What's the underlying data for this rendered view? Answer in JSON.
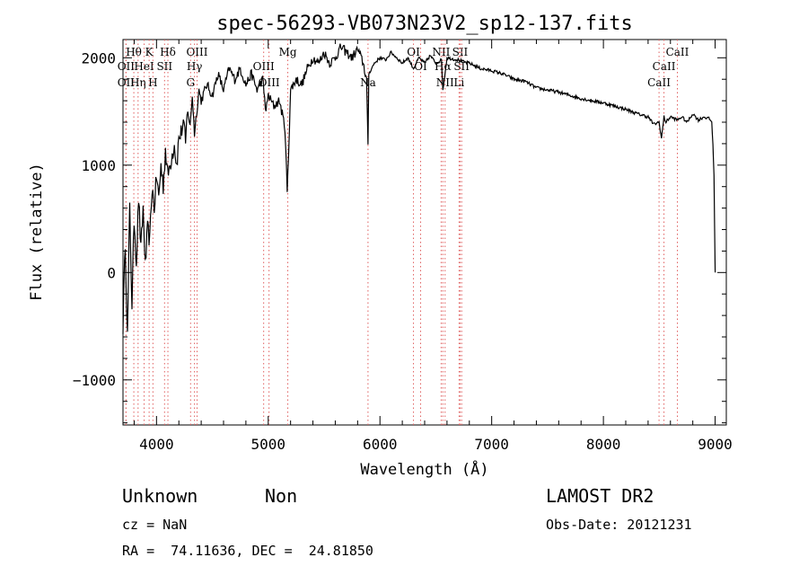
{
  "chart_data": {
    "type": "line",
    "title": "spec-56293-VB073N23V2_sp12-137.fits",
    "xlabel": "Wavelength (Å)",
    "ylabel": "Flux (relative)",
    "xlim": [
      3700,
      9100
    ],
    "ylim": [
      -1420,
      2170
    ],
    "x_ticks": [
      4000,
      5000,
      6000,
      7000,
      8000,
      9000
    ],
    "y_ticks": [
      -1000,
      0,
      1000,
      2000
    ],
    "x_tick_labels": [
      "4000",
      "5000",
      "6000",
      "7000",
      "8000",
      "9000"
    ],
    "y_tick_labels": [
      "−1000",
      "0",
      "1000",
      "2000"
    ],
    "line_color": "#000000",
    "marker_color": "#e06060",
    "spectrum": {
      "x": [
        3700,
        3720,
        3740,
        3760,
        3780,
        3800,
        3820,
        3840,
        3860,
        3880,
        3900,
        3920,
        3940,
        3960,
        3980,
        4000,
        4020,
        4040,
        4060,
        4080,
        4100,
        4120,
        4140,
        4160,
        4180,
        4200,
        4220,
        4240,
        4260,
        4280,
        4300,
        4320,
        4340,
        4360,
        4380,
        4400,
        4450,
        4500,
        4550,
        4600,
        4650,
        4700,
        4750,
        4800,
        4850,
        4900,
        4950,
        4980,
        5000,
        5050,
        5100,
        5150,
        5170,
        5185,
        5200,
        5250,
        5300,
        5350,
        5400,
        5450,
        5500,
        5550,
        5600,
        5650,
        5700,
        5750,
        5800,
        5850,
        5880,
        5893,
        5900,
        5950,
        6000,
        6050,
        6100,
        6150,
        6200,
        6250,
        6300,
        6350,
        6400,
        6450,
        6500,
        6550,
        6563,
        6600,
        6650,
        6700,
        6750,
        6800,
        6900,
        7000,
        7100,
        7200,
        7300,
        7400,
        7500,
        7600,
        7700,
        7800,
        7900,
        8000,
        8100,
        8200,
        8300,
        8400,
        8450,
        8498,
        8520,
        8542,
        8560,
        8600,
        8662,
        8700,
        8750,
        8800,
        8850,
        8900,
        8950,
        8970,
        8980,
        8990,
        9000
      ],
      "y": [
        -500,
        300,
        -600,
        600,
        -300,
        500,
        100,
        700,
        200,
        600,
        50,
        400,
        300,
        800,
        600,
        900,
        700,
        1000,
        800,
        1150,
        900,
        1000,
        1100,
        1200,
        1000,
        1250,
        1300,
        1400,
        1200,
        1550,
        1350,
        1650,
        1300,
        1500,
        1700,
        1600,
        1750,
        1650,
        1850,
        1700,
        1900,
        1800,
        1900,
        1750,
        1850,
        1700,
        1800,
        1500,
        1650,
        1550,
        1600,
        1350,
        750,
        1200,
        1700,
        1800,
        1750,
        1900,
        2000,
        1950,
        2050,
        1950,
        2000,
        2100,
        2050,
        2000,
        2080,
        1950,
        1800,
        1150,
        1850,
        1950,
        2000,
        1980,
        2050,
        2000,
        1950,
        2000,
        1900,
        2000,
        1950,
        2020,
        1950,
        1980,
        1700,
        2000,
        1990,
        1980,
        1960,
        1950,
        1900,
        1880,
        1850,
        1800,
        1780,
        1720,
        1700,
        1680,
        1650,
        1620,
        1600,
        1580,
        1550,
        1520,
        1480,
        1450,
        1380,
        1400,
        1250,
        1450,
        1400,
        1450,
        1420,
        1450,
        1400,
        1480,
        1420,
        1450,
        1430,
        1400,
        1200,
        900,
        0
      ]
    },
    "line_markers": [
      {
        "label": "Hθ",
        "x": 3797,
        "row": 0
      },
      {
        "label": "K",
        "x": 3934,
        "row": 0
      },
      {
        "label": "Hδ",
        "x": 4102,
        "row": 0
      },
      {
        "label": "OIII",
        "x": 4363,
        "row": 0
      },
      {
        "label": "Mg",
        "x": 5175,
        "row": 0
      },
      {
        "label": "OI",
        "x": 6300,
        "row": 0
      },
      {
        "label": "NII",
        "x": 6548,
        "row": 0
      },
      {
        "label": "SII",
        "x": 6717,
        "row": 0
      },
      {
        "label": "CaII",
        "x": 8662,
        "row": 0
      },
      {
        "label": "OII",
        "x": 3727,
        "row": 1
      },
      {
        "label": "HeI",
        "x": 3889,
        "row": 1
      },
      {
        "label": "SII",
        "x": 4072,
        "row": 1
      },
      {
        "label": "Hγ",
        "x": 4340,
        "row": 1
      },
      {
        "label": "OIII",
        "x": 4959,
        "row": 1
      },
      {
        "label": "OI",
        "x": 6364,
        "row": 1
      },
      {
        "label": "Hα",
        "x": 6563,
        "row": 1
      },
      {
        "label": "SII",
        "x": 6731,
        "row": 1
      },
      {
        "label": "CaII",
        "x": 8542,
        "row": 1
      },
      {
        "label": "OII",
        "x": 3727,
        "row": 2
      },
      {
        "label": "Hη",
        "x": 3835,
        "row": 2
      },
      {
        "label": "H",
        "x": 3968,
        "row": 2
      },
      {
        "label": "G",
        "x": 4305,
        "row": 2
      },
      {
        "label": "OIII",
        "x": 5007,
        "row": 2
      },
      {
        "label": "Na",
        "x": 5893,
        "row": 2
      },
      {
        "label": "NII",
        "x": 6583,
        "row": 2
      },
      {
        "label": "Li",
        "x": 6708,
        "row": 2
      },
      {
        "label": "CaII",
        "x": 8498,
        "row": 2
      }
    ]
  },
  "info": {
    "class_text": "Unknown",
    "subclass_text": "Non",
    "survey": "LAMOST DR2",
    "cz": "cz = NaN",
    "obs_date": "Obs-Date: 20121231",
    "coords": "RA =  74.11636, DEC =  24.81850"
  }
}
